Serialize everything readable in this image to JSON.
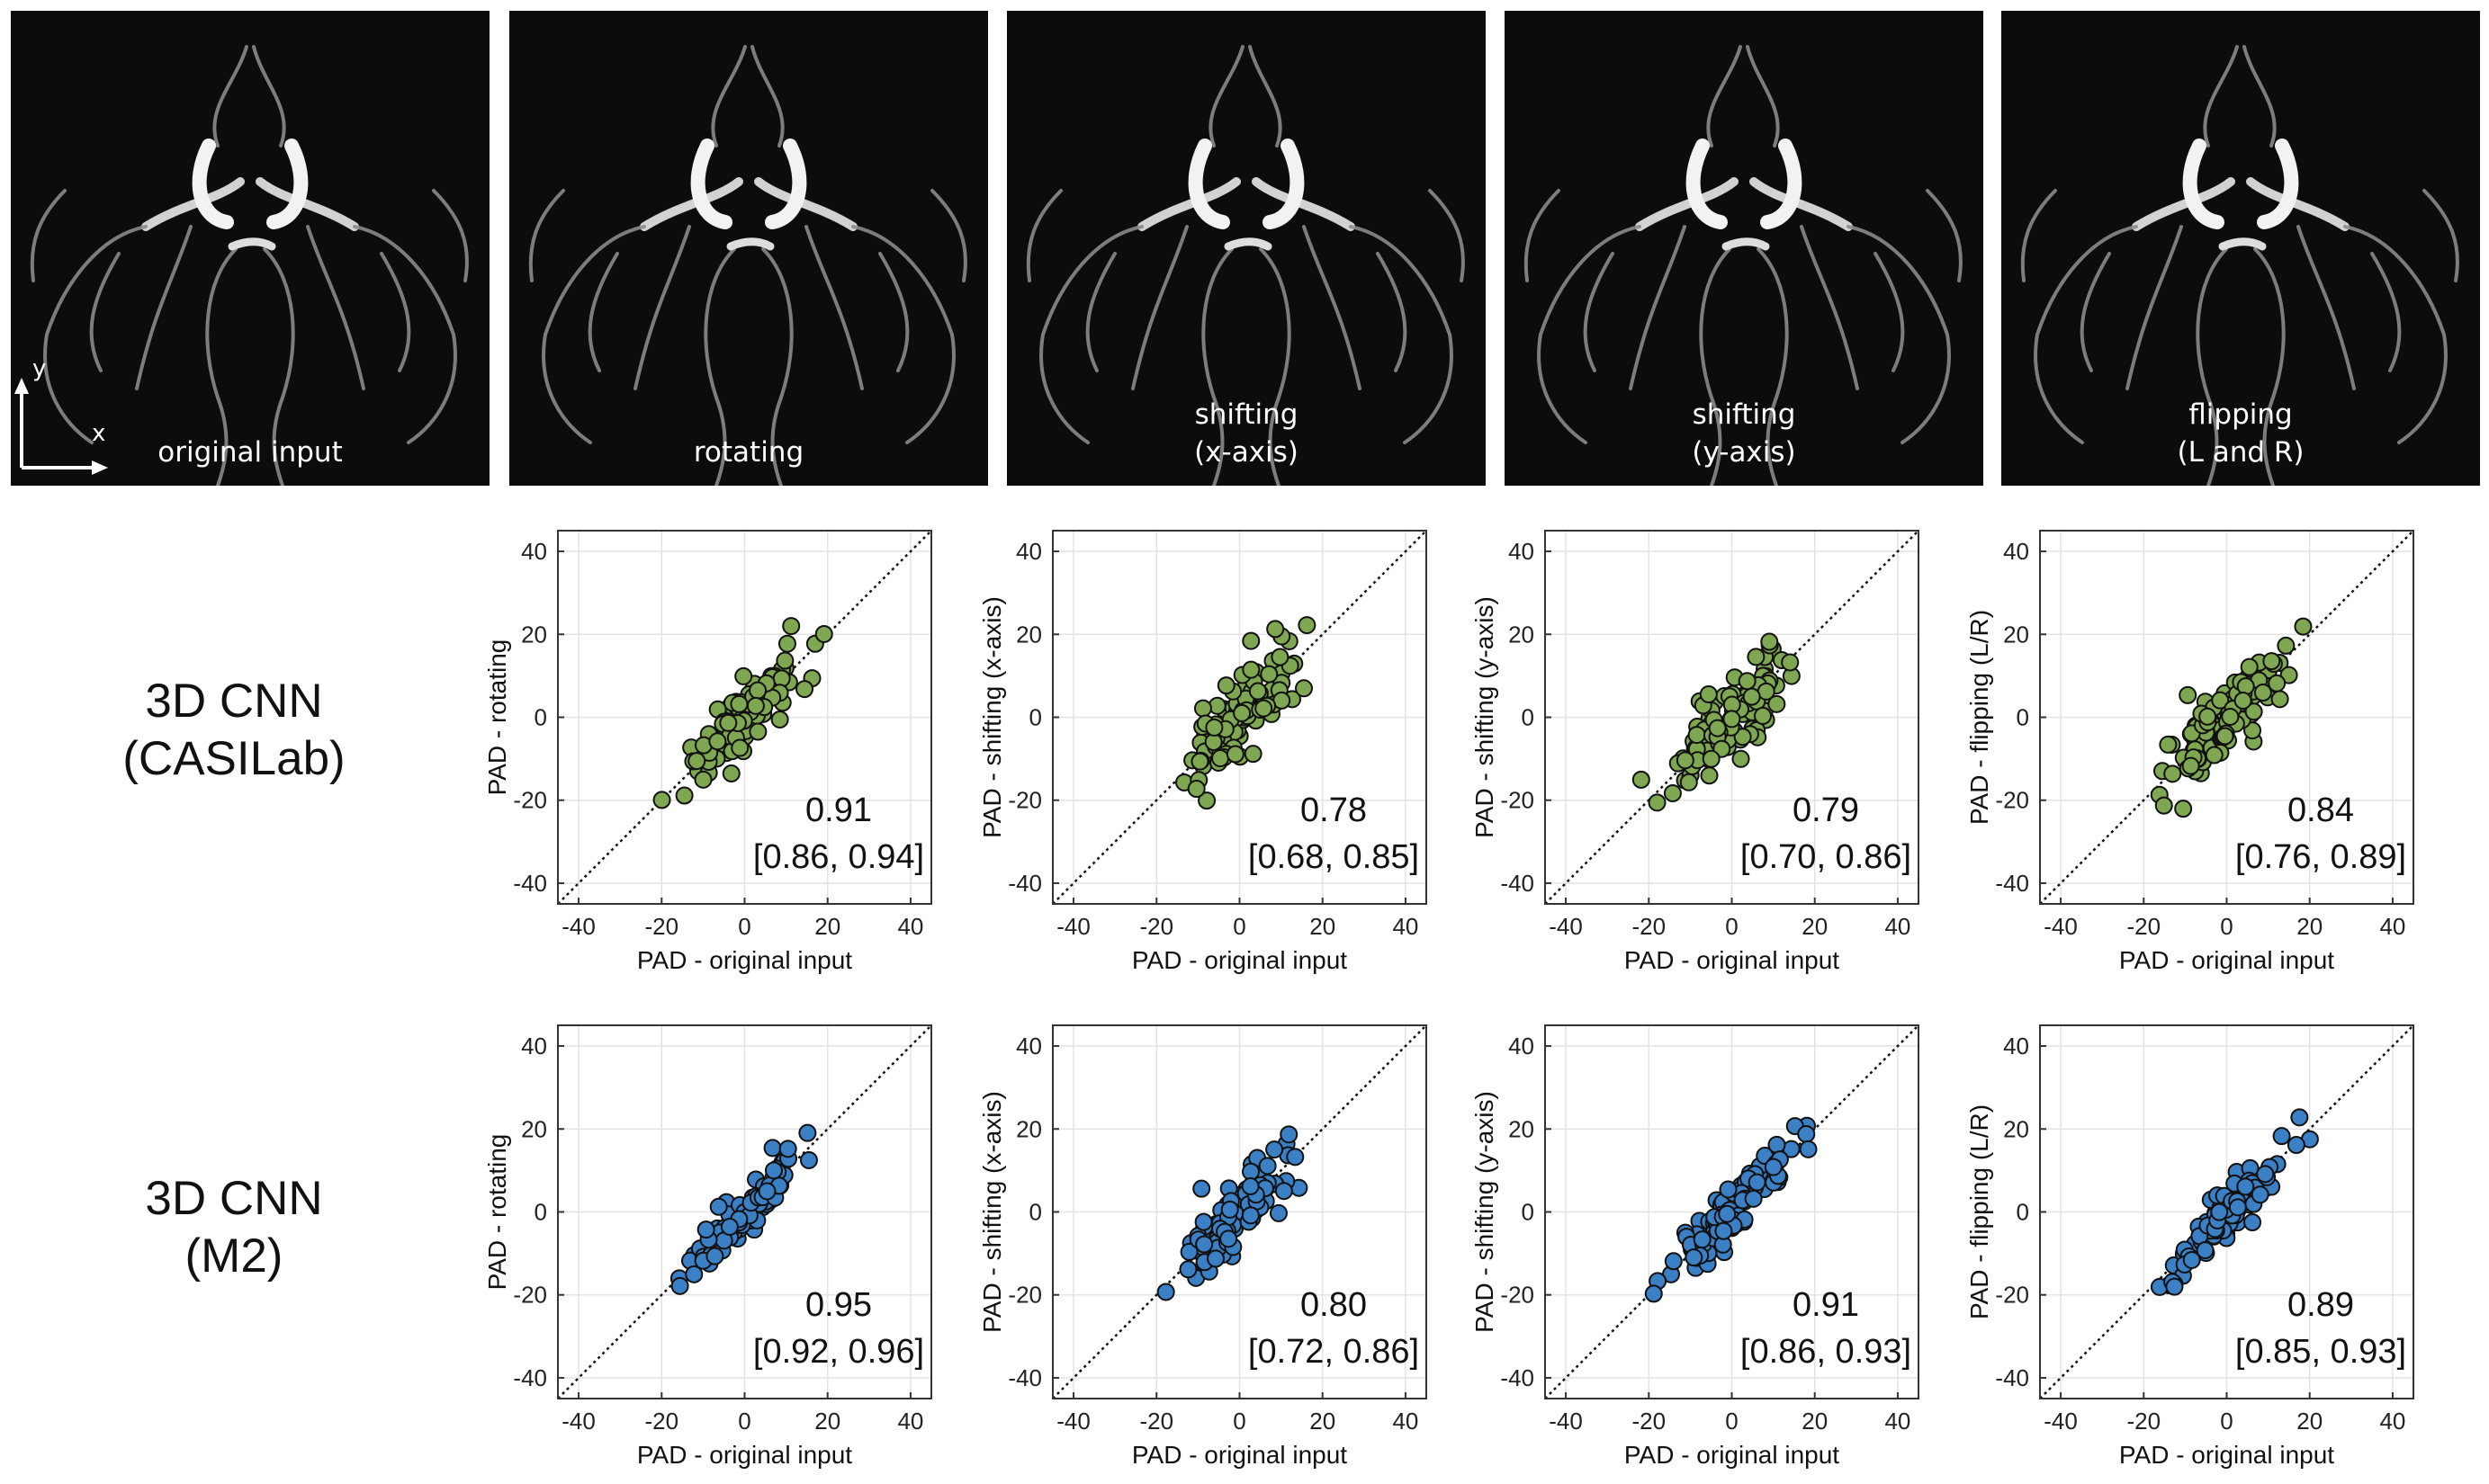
{
  "panels": [
    {
      "label": "original input"
    },
    {
      "label": "rotating"
    },
    {
      "label": "shifting\n(x-axis)"
    },
    {
      "label": "shifting\n(y-axis)"
    },
    {
      "label": "flipping\n(L and R)"
    }
  ],
  "axis_indicator": {
    "x": "x",
    "y": "y"
  },
  "rows": [
    {
      "label_line1": "3D CNN",
      "label_line2": "(CASILab)",
      "color": "#7fa650"
    },
    {
      "label_line1": "3D CNN",
      "label_line2": "(M2)",
      "color": "#3b7fc4"
    }
  ],
  "chart_data": [
    {
      "type": "scatter",
      "row": 0,
      "xlabel": "PAD - original input",
      "ylabel": "PAD - rotating",
      "xlim": [
        -45,
        45
      ],
      "ylim": [
        -45,
        45
      ],
      "xticks": [
        -40,
        -20,
        0,
        20,
        40
      ],
      "yticks": [
        -40,
        -20,
        0,
        20,
        40
      ],
      "identity_line": true,
      "grid": true,
      "annotation_value": "0.91",
      "annotation_ci": "[0.86, 0.94]",
      "spread": 3.5,
      "color": "#7fa650"
    },
    {
      "type": "scatter",
      "row": 0,
      "xlabel": "PAD - original input",
      "ylabel": "PAD - shifting (x-axis)",
      "xlim": [
        -45,
        45
      ],
      "ylim": [
        -45,
        45
      ],
      "xticks": [
        -40,
        -20,
        0,
        20,
        40
      ],
      "yticks": [
        -40,
        -20,
        0,
        20,
        40
      ],
      "identity_line": true,
      "grid": true,
      "annotation_value": "0.78",
      "annotation_ci": "[0.68, 0.85]",
      "spread": 5.5,
      "color": "#7fa650"
    },
    {
      "type": "scatter",
      "row": 0,
      "xlabel": "PAD - original input",
      "ylabel": "PAD - shifting (y-axis)",
      "xlim": [
        -45,
        45
      ],
      "ylim": [
        -45,
        45
      ],
      "xticks": [
        -40,
        -20,
        0,
        20,
        40
      ],
      "yticks": [
        -40,
        -20,
        0,
        20,
        40
      ],
      "identity_line": true,
      "grid": true,
      "annotation_value": "0.79",
      "annotation_ci": "[0.70, 0.86]",
      "spread": 5.5,
      "color": "#7fa650"
    },
    {
      "type": "scatter",
      "row": 0,
      "xlabel": "PAD - original input",
      "ylabel": "PAD - flipping (L/R)",
      "xlim": [
        -45,
        45
      ],
      "ylim": [
        -45,
        45
      ],
      "xticks": [
        -40,
        -20,
        0,
        20,
        40
      ],
      "yticks": [
        -40,
        -20,
        0,
        20,
        40
      ],
      "identity_line": true,
      "grid": true,
      "annotation_value": "0.84",
      "annotation_ci": "[0.76, 0.89]",
      "spread": 4.5,
      "color": "#7fa650"
    },
    {
      "type": "scatter",
      "row": 1,
      "xlabel": "PAD - original input",
      "ylabel": "PAD - rotating",
      "xlim": [
        -45,
        45
      ],
      "ylim": [
        -45,
        45
      ],
      "xticks": [
        -40,
        -20,
        0,
        20,
        40
      ],
      "yticks": [
        -40,
        -20,
        0,
        20,
        40
      ],
      "identity_line": true,
      "grid": true,
      "annotation_value": "0.95",
      "annotation_ci": "[0.92, 0.96]",
      "spread": 2.3,
      "color": "#3b7fc4"
    },
    {
      "type": "scatter",
      "row": 1,
      "xlabel": "PAD - original input",
      "ylabel": "PAD - shifting (x-axis)",
      "xlim": [
        -45,
        45
      ],
      "ylim": [
        -45,
        45
      ],
      "xticks": [
        -40,
        -20,
        0,
        20,
        40
      ],
      "yticks": [
        -40,
        -20,
        0,
        20,
        40
      ],
      "identity_line": true,
      "grid": true,
      "annotation_value": "0.80",
      "annotation_ci": "[0.72, 0.86]",
      "spread": 3.8,
      "color": "#3b7fc4"
    },
    {
      "type": "scatter",
      "row": 1,
      "xlabel": "PAD - original input",
      "ylabel": "PAD - shifting (y-axis)",
      "xlim": [
        -45,
        45
      ],
      "ylim": [
        -45,
        45
      ],
      "xticks": [
        -40,
        -20,
        0,
        20,
        40
      ],
      "yticks": [
        -40,
        -20,
        0,
        20,
        40
      ],
      "identity_line": true,
      "grid": true,
      "annotation_value": "0.91",
      "annotation_ci": "[0.86, 0.93]",
      "spread": 3.0,
      "color": "#3b7fc4"
    },
    {
      "type": "scatter",
      "row": 1,
      "xlabel": "PAD - original input",
      "ylabel": "PAD - flipping (L/R)",
      "xlim": [
        -45,
        45
      ],
      "ylim": [
        -45,
        45
      ],
      "xticks": [
        -40,
        -20,
        0,
        20,
        40
      ],
      "yticks": [
        -40,
        -20,
        0,
        20,
        40
      ],
      "identity_line": true,
      "grid": true,
      "annotation_value": "0.89",
      "annotation_ci": "[0.85, 0.93]",
      "spread": 2.8,
      "color": "#3b7fc4"
    }
  ]
}
